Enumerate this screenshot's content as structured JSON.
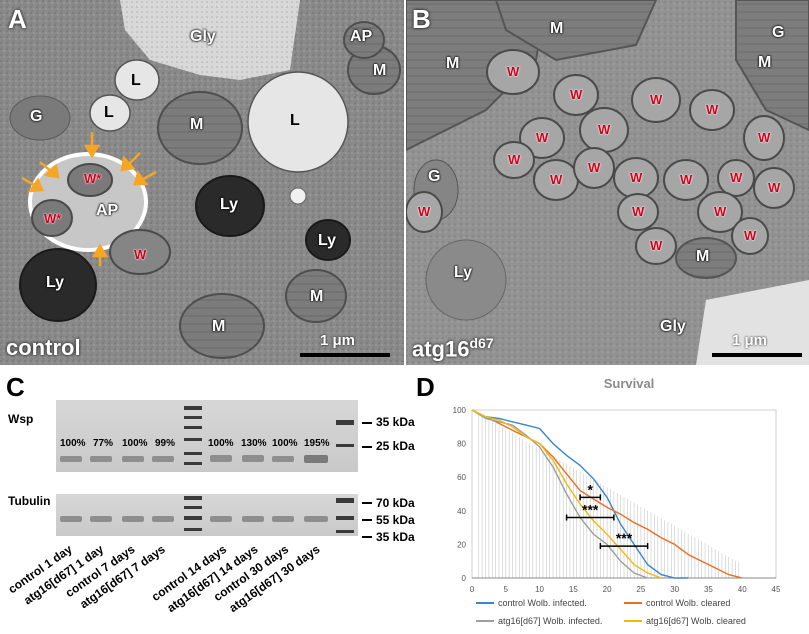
{
  "panels": {
    "a": {
      "letter": "A",
      "caption": "control",
      "scale": "1 μm",
      "labels": [
        "Gly",
        "AP",
        "M",
        "L",
        "L",
        "M",
        "L",
        "G",
        "W*",
        "W*",
        "AP",
        "W",
        "Ly",
        "Ly",
        "Ly",
        "M",
        "M"
      ]
    },
    "b": {
      "letter": "B",
      "caption_main": "atg16",
      "caption_sup": "d67",
      "scale": "1 μm",
      "labels": [
        "M",
        "M",
        "G",
        "M",
        "G",
        "Ly",
        "M",
        "Gly"
      ],
      "w_label": "W"
    },
    "c": {
      "letter": "C",
      "wsp_label": "Wsp",
      "tubulin_label": "Tubulin",
      "percentages": [
        "100%",
        "77%",
        "100%",
        "99%",
        "100%",
        "130%",
        "100%",
        "195%"
      ],
      "kda_top": [
        "35 kDa",
        "25 kDa"
      ],
      "kda_bottom": [
        "70 kDa",
        "55 kDa",
        "35 kDa"
      ],
      "lanes": [
        "control 1 day",
        "atg16[d67] 1 day",
        "control 7 days",
        "atg16[d67] 7 days",
        "control 14 days",
        "atg16[d67] 14 days",
        "control 30 days",
        "atg16[d67] 30 days"
      ]
    },
    "d": {
      "letter": "D"
    }
  },
  "chart_data": {
    "type": "line",
    "title": "Survival",
    "xlim": [
      0,
      45
    ],
    "ylim": [
      0,
      100
    ],
    "x_ticks": [
      0,
      5,
      10,
      15,
      20,
      25,
      30,
      35,
      40,
      45
    ],
    "y_ticks": [
      0,
      20,
      40,
      60,
      80,
      100
    ],
    "significance": [
      {
        "label": "*",
        "x1": 16,
        "x2": 19,
        "y": 48
      },
      {
        "label": "***",
        "x1": 14,
        "x2": 21,
        "y": 36
      },
      {
        "label": "***",
        "x1": 19,
        "x2": 26,
        "y": 19
      }
    ],
    "series": [
      {
        "name": "control Wolb. infected.",
        "color": "#3b86c6",
        "x": [
          0,
          2,
          4,
          6,
          8,
          10,
          12,
          14,
          16,
          18,
          20,
          22,
          24,
          26,
          28,
          30,
          32
        ],
        "y": [
          100,
          96,
          95,
          93,
          91,
          89,
          80,
          73,
          67,
          59,
          48,
          32,
          20,
          8,
          2,
          0,
          0
        ]
      },
      {
        "name": "control Wolb. cleared",
        "color": "#e86f23",
        "x": [
          0,
          2,
          4,
          6,
          8,
          10,
          12,
          14,
          16,
          18,
          20,
          22,
          24,
          26,
          28,
          30,
          32,
          34,
          36,
          38,
          40
        ],
        "y": [
          100,
          96,
          92,
          88,
          84,
          80,
          72,
          62,
          52,
          47,
          42,
          38,
          33,
          29,
          24,
          20,
          14,
          10,
          6,
          2,
          0
        ]
      },
      {
        "name": "atg16[d67] Wolb. infected.",
        "color": "#9e9e9e",
        "x": [
          0,
          2,
          4,
          6,
          8,
          10,
          12,
          14,
          16,
          18,
          20,
          22,
          24,
          26
        ],
        "y": [
          100,
          95,
          93,
          91,
          85,
          78,
          66,
          50,
          36,
          26,
          20,
          10,
          3,
          0
        ]
      },
      {
        "name": "atg16[d67] Wolb. cleared",
        "color": "#f2b90f",
        "x": [
          0,
          2,
          4,
          6,
          8,
          10,
          12,
          14,
          16,
          18,
          20,
          22,
          24,
          26,
          28
        ],
        "y": [
          100,
          96,
          94,
          90,
          84,
          80,
          70,
          56,
          44,
          34,
          26,
          17,
          8,
          3,
          0
        ]
      }
    ]
  }
}
